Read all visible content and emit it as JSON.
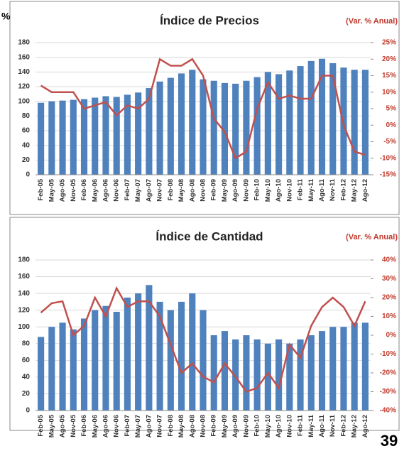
{
  "fragment": "%",
  "page_number": "39",
  "chart_data": [
    {
      "type": "bar",
      "title": "Índice de Precios",
      "subtitle": "(Var. % Anual)",
      "categories": [
        "Feb-05",
        "May-05",
        "Ago-05",
        "Nov-05",
        "Feb-06",
        "May-06",
        "Ago-06",
        "Nov-06",
        "Feb-07",
        "May-07",
        "Ago-07",
        "Nov-07",
        "Feb-08",
        "May-08",
        "Ago-08",
        "Nov-08",
        "Feb-09",
        "May-09",
        "Ago-09",
        "Nov-09",
        "Feb-10",
        "May-10",
        "Ago-10",
        "Nov-10",
        "Feb-11",
        "May-11",
        "Ago-11",
        "Nov-11",
        "Feb-12",
        "May-12",
        "Ago-12"
      ],
      "series": [
        {
          "color": "#4f81bd",
          "values": [
            98,
            100,
            101,
            102,
            103,
            105,
            107,
            106,
            109,
            112,
            118,
            127,
            132,
            138,
            143,
            130,
            128,
            125,
            124,
            128,
            133,
            140,
            137,
            142,
            148,
            155,
            158,
            152,
            146,
            143,
            143
          ]
        },
        {
          "color": "#c0504d",
          "axis": "y2",
          "values": [
            12,
            10,
            10,
            10,
            5,
            6,
            7,
            3,
            6,
            5,
            8,
            20,
            18,
            18,
            20,
            15,
            2,
            -2,
            -10,
            -8,
            5,
            13,
            8,
            9,
            8,
            8,
            15,
            15,
            0,
            -8,
            -9
          ]
        }
      ],
      "ylim": [
        0,
        180
      ],
      "yticks": [
        0,
        20,
        40,
        60,
        80,
        100,
        120,
        140,
        160,
        180
      ],
      "y2lim": [
        -15,
        25
      ],
      "y2ticks": [
        {
          "value": -15,
          "label": "-15%"
        },
        {
          "value": -10,
          "label": "-10%"
        },
        {
          "value": -5,
          "label": "-5%"
        },
        {
          "value": 0,
          "label": "0%"
        },
        {
          "value": 5,
          "label": "5%"
        },
        {
          "value": 10,
          "label": "10%"
        },
        {
          "value": 15,
          "label": "15%"
        },
        {
          "value": 20,
          "label": "20%"
        },
        {
          "value": 25,
          "label": "25%"
        }
      ],
      "grid": true
    },
    {
      "type": "bar",
      "title": "Índice de Cantidad",
      "subtitle": "(Var. % Anual)",
      "categories": [
        "Feb-05",
        "May-05",
        "Ago-05",
        "Nov-05",
        "Feb-06",
        "May-06",
        "Ago-06",
        "Nov-06",
        "Feb-07",
        "May-07",
        "Ago-07",
        "Nov-07",
        "Feb-08",
        "May-08",
        "Ago-08",
        "Nov-08",
        "Feb-09",
        "May-09",
        "Ago-09",
        "Nov-09",
        "Feb-10",
        "May-10",
        "Ago-10",
        "Nov-10",
        "Feb-11",
        "May-11",
        "Ago-11",
        "Nov-11",
        "Feb-12",
        "May-12",
        "Ago-12"
      ],
      "series": [
        {
          "color": "#4f81bd",
          "values": [
            88,
            100,
            105,
            97,
            110,
            120,
            125,
            118,
            135,
            140,
            150,
            130,
            120,
            130,
            140,
            120,
            90,
            95,
            85,
            90,
            85,
            80,
            85,
            80,
            85,
            90,
            95,
            100,
            100,
            105,
            105
          ]
        },
        {
          "color": "#c0504d",
          "axis": "y2",
          "values": [
            12,
            17,
            18,
            0,
            5,
            20,
            10,
            25,
            15,
            18,
            18,
            10,
            -5,
            -20,
            -15,
            -22,
            -25,
            -15,
            -22,
            -30,
            -28,
            -20,
            -28,
            -5,
            -12,
            5,
            15,
            20,
            15,
            5,
            18
          ]
        }
      ],
      "ylim": [
        0,
        180
      ],
      "yticks": [
        0,
        20,
        40,
        60,
        80,
        100,
        120,
        140,
        160,
        180
      ],
      "y2lim": [
        -40,
        40
      ],
      "y2ticks": [
        {
          "value": -40,
          "label": "-40%"
        },
        {
          "value": -30,
          "label": "-30%"
        },
        {
          "value": -20,
          "label": "-20%"
        },
        {
          "value": -10,
          "label": "-10%"
        },
        {
          "value": 0,
          "label": "0%"
        },
        {
          "value": 10,
          "label": "10%"
        },
        {
          "value": 20,
          "label": "20%"
        },
        {
          "value": 30,
          "label": "30%"
        },
        {
          "value": 40,
          "label": "40%"
        }
      ],
      "grid": true
    }
  ]
}
